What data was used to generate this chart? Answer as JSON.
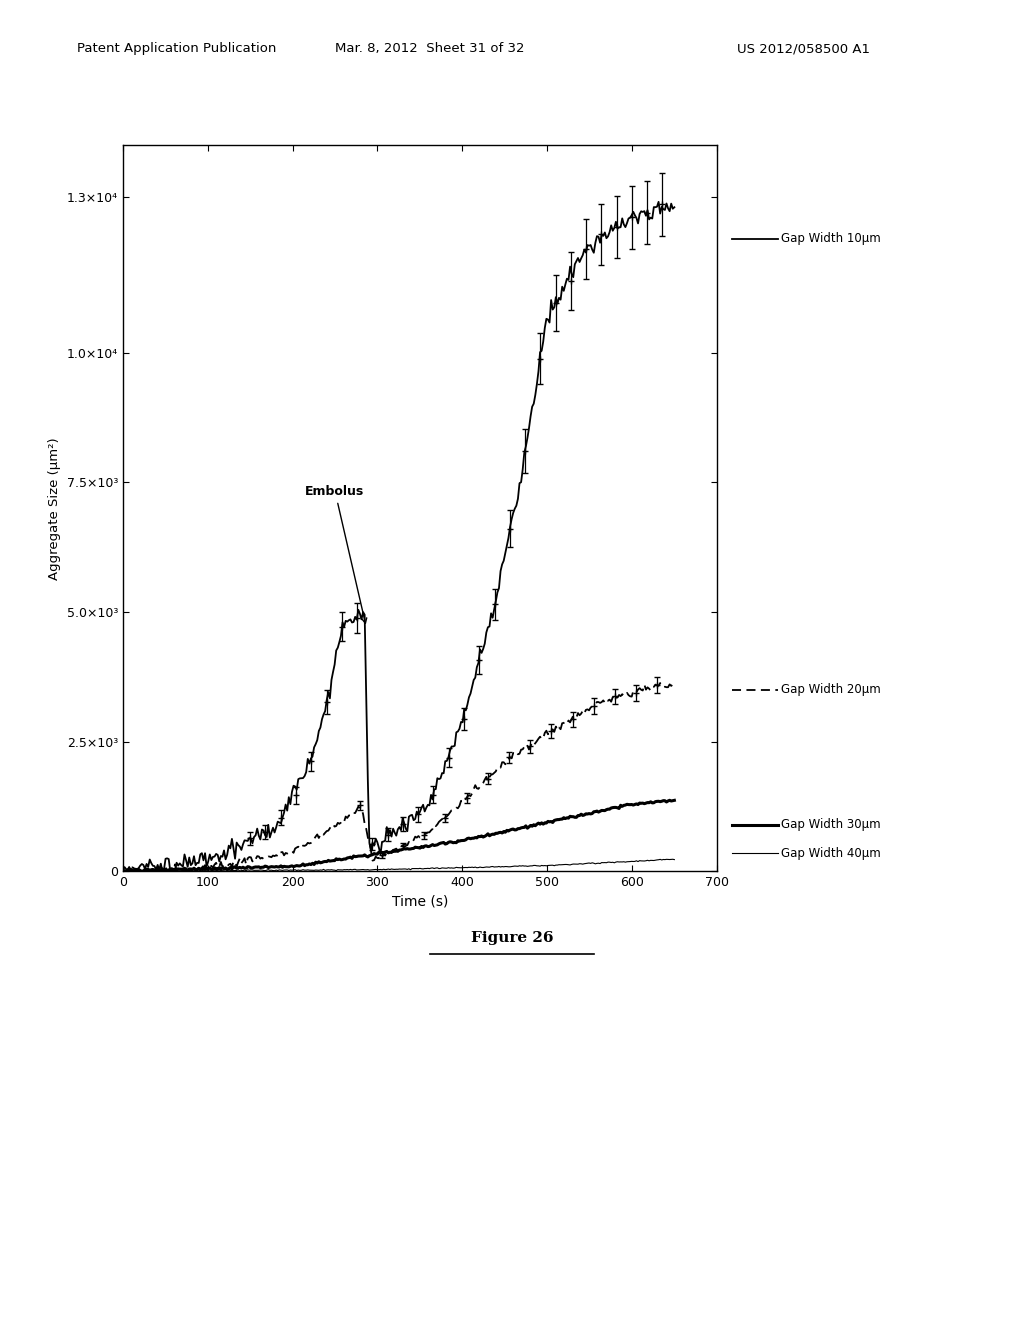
{
  "header_left": "Patent Application Publication",
  "header_mid": "Mar. 8, 2012  Sheet 31 of 32",
  "header_right": "US 2012/058500 A1",
  "xlabel": "Time (s)",
  "ylabel": "Aggregate Size (μm²)",
  "xlim": [
    0,
    700
  ],
  "ylim": [
    0,
    14000
  ],
  "yticks": [
    0,
    2500,
    5000,
    7500,
    10000,
    13000
  ],
  "ytick_labels": [
    "0",
    "2.5×10³",
    "5.0×10³",
    "7.5×10³",
    "1.0×10⁴",
    "1.3×10⁴"
  ],
  "xticks": [
    0,
    100,
    200,
    300,
    400,
    500,
    600,
    700
  ],
  "figure_caption": "Figure 26",
  "embolus_label": "Embolus",
  "legend_labels": [
    "Gap Width 10μm",
    "Gap Width 20μm",
    "Gap Width 30μm",
    "Gap Width 40μm"
  ],
  "bg_color": "#ffffff",
  "line_color": "#000000"
}
